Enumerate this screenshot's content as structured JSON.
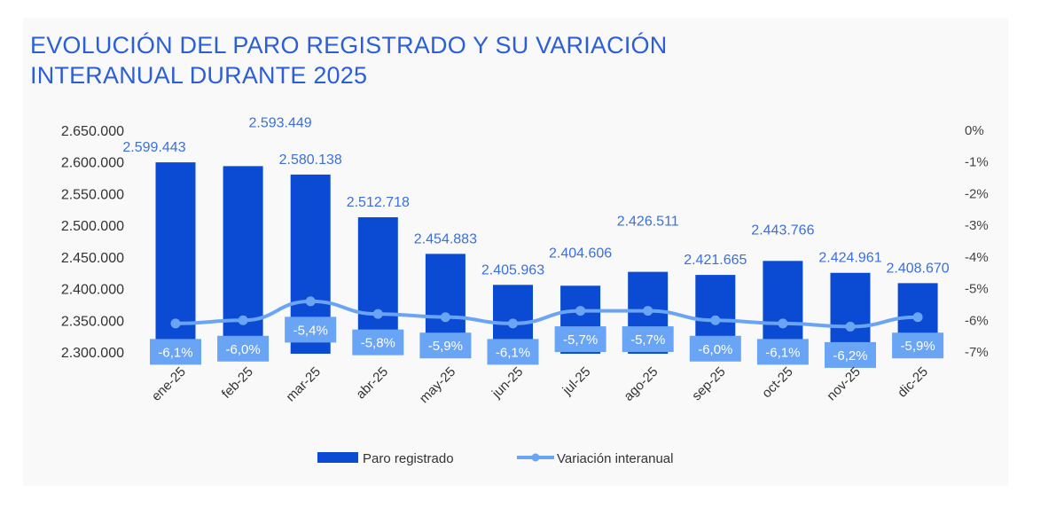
{
  "chart_data": {
    "type": "bar",
    "title": "EVOLUCIÓN DEL PARO REGISTRADO Y SU VARIACIÓN INTERANUAL DURANTE 2025",
    "title_lines": [
      "EVOLUCIÓN DEL PARO REGISTRADO Y SU VARIACIÓN",
      "INTERANUAL DURANTE 2025"
    ],
    "categories": [
      "ene-25",
      "feb-25",
      "mar-25",
      "abr-25",
      "may-25",
      "jun-25",
      "jul-25",
      "ago-25",
      "sep-25",
      "oct-25",
      "nov-25",
      "dic-25"
    ],
    "series": [
      {
        "name": "Paro registrado",
        "type": "bar",
        "axis": "left",
        "color": "#0b4ad2",
        "values": [
          2599443,
          2593449,
          2580138,
          2512718,
          2454883,
          2405963,
          2404606,
          2426511,
          2421665,
          2443766,
          2424961,
          2408670
        ],
        "labels": [
          "2.599.443",
          "2.593.449",
          "2.580.138",
          "2.512.718",
          "2.454.883",
          "2.405.963",
          "2.404.606",
          "2.426.511",
          "2.421.665",
          "2.443.766",
          "2.424.961",
          "2.408.670"
        ]
      },
      {
        "name": "Variación interanual",
        "type": "line",
        "axis": "right",
        "color": "#6aa4f5",
        "values": [
          -6.1,
          -6.0,
          -5.4,
          -5.8,
          -5.9,
          -6.1,
          -5.7,
          -5.7,
          -6.0,
          -6.1,
          -6.2,
          -5.9
        ],
        "labels": [
          "-6,1%",
          "-6,0%",
          "-5,4%",
          "-5,8%",
          "-5,9%",
          "-6,1%",
          "-5,7%",
          "-5,7%",
          "-6,0%",
          "-6,1%",
          "-6,2%",
          "-5,9%"
        ]
      }
    ],
    "left_axis": {
      "ylim": [
        2300000,
        2650000
      ],
      "ticks": [
        2650000,
        2600000,
        2550000,
        2500000,
        2450000,
        2400000,
        2350000,
        2300000
      ],
      "tick_labels": [
        "2.650.000",
        "2.600.000",
        "2.550.000",
        "2.500.000",
        "2.450.000",
        "2.400.000",
        "2.350.000",
        "2.300.000"
      ]
    },
    "right_axis": {
      "ylim": [
        -7,
        0
      ],
      "ticks": [
        0,
        -1,
        -2,
        -3,
        -4,
        -5,
        -6,
        -7
      ],
      "tick_labels": [
        "0%",
        "-1%",
        "-2%",
        "-3%",
        "-4%",
        "-5%",
        "-6%",
        "-7%"
      ]
    },
    "xlabel": "",
    "ylabel": "",
    "grid": false,
    "legend": {
      "position": "bottom-center",
      "entries": [
        "Paro registrado",
        "Variación interanual"
      ]
    },
    "colors": {
      "title": "#2b5fd9",
      "bar": "#0b4ad2",
      "line": "#6aa4f5",
      "bar_label": "#3b6fde",
      "pct_box": "#6aa4f5",
      "pct_text": "#ffffff",
      "background": "#f9f9f9"
    }
  }
}
